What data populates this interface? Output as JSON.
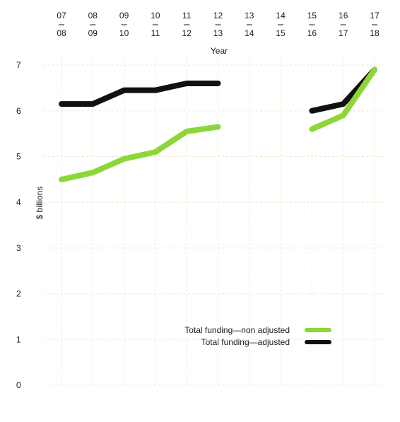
{
  "chart_data": {
    "type": "line",
    "xlabel": "Year",
    "ylabel": "$ billions",
    "categories": [
      {
        "top": "07",
        "bottom": "08"
      },
      {
        "top": "08",
        "bottom": "09"
      },
      {
        "top": "09",
        "bottom": "10"
      },
      {
        "top": "10",
        "bottom": "11"
      },
      {
        "top": "11",
        "bottom": "12"
      },
      {
        "top": "12",
        "bottom": "13"
      },
      {
        "top": "13",
        "bottom": "14"
      },
      {
        "top": "14",
        "bottom": "15"
      },
      {
        "top": "15",
        "bottom": "16"
      },
      {
        "top": "16",
        "bottom": "17"
      },
      {
        "top": "17",
        "bottom": "18"
      }
    ],
    "x_axis_position": "top",
    "yticks": [
      0,
      1,
      2,
      3,
      4,
      5,
      6,
      7
    ],
    "ylim": [
      0,
      7
    ],
    "grid": "dashed vertical and horizontal",
    "legend_position": "bottom-right",
    "series": [
      {
        "name": "Total funding—non adjusted",
        "color": "#8cd63a",
        "values": [
          4.5,
          4.65,
          4.95,
          5.1,
          5.55,
          5.65,
          null,
          null,
          5.6,
          5.9,
          6.9
        ]
      },
      {
        "name": "Total funding—adjusted",
        "color": "#111111",
        "values": [
          6.15,
          6.15,
          6.45,
          6.45,
          6.6,
          6.6,
          null,
          null,
          6.0,
          6.15,
          6.9
        ]
      }
    ]
  }
}
